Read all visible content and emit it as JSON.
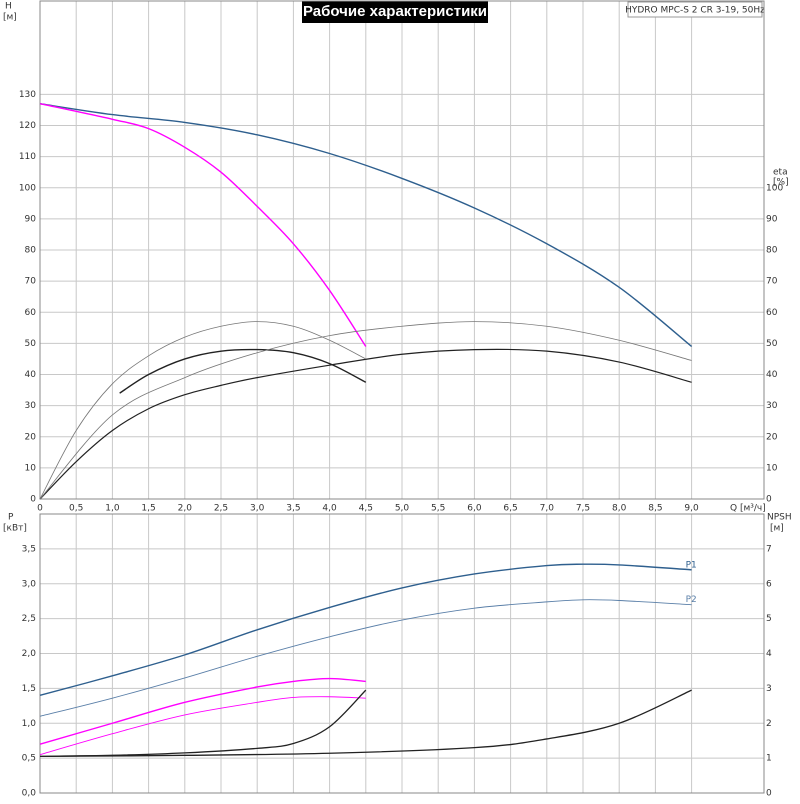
{
  "chart_data": [
    {
      "type": "line",
      "title": "Рабочие характеристики",
      "annotation": "HYDRO MPC-S 2 CR 3-19, 50Hz",
      "ylabel": "H",
      "ylabel_unit": "[м]",
      "y2label": "eta",
      "y2label_unit": "[%]",
      "xlabel": "Q [м³/ч]",
      "xlim": [
        0,
        10
      ],
      "ylim": [
        0,
        160
      ],
      "y2lim": [
        0,
        160
      ],
      "grid": true,
      "xticks": [
        0,
        {
          "value": 0.5,
          "label": "0,5"
        },
        {
          "value": 1,
          "label": "1,0"
        },
        {
          "value": 1.5,
          "label": "1,5"
        },
        {
          "value": 2,
          "label": "2,0"
        },
        {
          "value": 2.5,
          "label": "2,5"
        },
        {
          "value": 3,
          "label": "3,0"
        },
        {
          "value": 3.5,
          "label": "3,5"
        },
        {
          "value": 4,
          "label": "4,0"
        },
        {
          "value": 4.5,
          "label": "4,5"
        },
        {
          "value": 5,
          "label": "5,0"
        },
        {
          "value": 5.5,
          "label": "5,5"
        },
        {
          "value": 6,
          "label": "6,0"
        },
        {
          "value": 6.5,
          "label": "6,5"
        },
        {
          "value": 7,
          "label": "7,0"
        },
        {
          "value": 7.5,
          "label": "7,5"
        },
        {
          "value": 8,
          "label": "8,0"
        },
        {
          "value": 8.5,
          "label": "8,5"
        },
        {
          "value": 9,
          "label": "9,0"
        }
      ],
      "yticks": [
        0,
        10,
        20,
        30,
        40,
        50,
        60,
        70,
        80,
        90,
        100,
        110,
        120,
        130
      ],
      "y2ticks": [
        0,
        10,
        20,
        30,
        40,
        50,
        60,
        70,
        80,
        90,
        100
      ],
      "series": [
        {
          "color": "#2e5f8e",
          "width": 1.4,
          "x": [
            0,
            1,
            2,
            3,
            4,
            5,
            6,
            7,
            8,
            9
          ],
          "values": [
            127,
            123.5,
            121,
            117,
            111,
            103,
            93.5,
            82,
            68,
            49
          ]
        },
        {
          "color": "#ff00ff",
          "width": 1.4,
          "x": [
            0,
            1,
            1.5,
            2,
            2.5,
            3,
            3.5,
            4,
            4.5
          ],
          "values": [
            127,
            122,
            119,
            113,
            105,
            94,
            82,
            67,
            49
          ]
        },
        {
          "color": "#222222",
          "width": 1.4,
          "axis": "y2",
          "x": [
            1.1,
            1.5,
            2,
            2.5,
            3,
            3.5,
            4,
            4.5
          ],
          "values": [
            34,
            40,
            45,
            47.5,
            48,
            47,
            43.5,
            37.5
          ]
        },
        {
          "color": "#222222",
          "width": 1.2,
          "axis": "y2",
          "x": [
            0,
            0.5,
            1,
            1.5,
            2,
            2.5,
            3,
            4,
            5,
            6,
            7,
            8,
            9
          ],
          "values": [
            0,
            12,
            22,
            29,
            33.5,
            36.5,
            39,
            43,
            46.5,
            48,
            47.5,
            44,
            37.5
          ]
        },
        {
          "color": "#777777",
          "width": 0.8,
          "axis": "y2",
          "x": [
            0,
            0.5,
            1,
            1.5,
            2,
            2.5,
            3,
            3.5,
            4,
            4.5
          ],
          "values": [
            0,
            22,
            37,
            46,
            52,
            55.5,
            57,
            55.5,
            51,
            45
          ]
        },
        {
          "color": "#777777",
          "width": 0.8,
          "axis": "y2",
          "x": [
            0,
            1,
            2,
            3,
            4,
            5,
            6,
            7,
            8,
            9
          ],
          "values": [
            0,
            27,
            39,
            47,
            52.5,
            55.5,
            57,
            55.5,
            51,
            44.5
          ]
        }
      ]
    },
    {
      "type": "line",
      "ylabel": "P",
      "ylabel_unit": "[кВт]",
      "y2label": "NPSH",
      "y2label_unit": "[м]",
      "xlim": [
        0,
        10
      ],
      "ylim": [
        0,
        4
      ],
      "y2lim": [
        0,
        8
      ],
      "grid": true,
      "yticks": [
        {
          "value": 0,
          "label": "0,0"
        },
        {
          "value": 0.5,
          "label": "0,5"
        },
        {
          "value": 1,
          "label": "1,0"
        },
        {
          "value": 1.5,
          "label": "1,5"
        },
        {
          "value": 2,
          "label": "2,0"
        },
        {
          "value": 2.5,
          "label": "2,5"
        },
        {
          "value": 3,
          "label": "3,0"
        },
        {
          "value": 3.5,
          "label": "3,5"
        }
      ],
      "y2ticks": [
        0,
        1,
        2,
        3,
        4,
        5,
        6,
        7
      ],
      "series": [
        {
          "name": "P1",
          "color": "#2e5f8e",
          "width": 1.4,
          "x": [
            0,
            1,
            2,
            3,
            4,
            5,
            6,
            7,
            7.5,
            8,
            9
          ],
          "values": [
            1.4,
            1.68,
            1.98,
            2.34,
            2.66,
            2.94,
            3.14,
            3.26,
            3.28,
            3.27,
            3.2
          ]
        },
        {
          "name": "P2",
          "color": "#5a7fa8",
          "width": 0.9,
          "x": [
            0,
            1,
            2,
            3,
            4,
            5,
            6,
            7,
            7.5,
            8,
            9
          ],
          "values": [
            1.1,
            1.36,
            1.65,
            1.96,
            2.24,
            2.48,
            2.65,
            2.74,
            2.77,
            2.76,
            2.7
          ]
        },
        {
          "color": "#ff00ff",
          "width": 1.4,
          "x": [
            0,
            1,
            2,
            3,
            3.5,
            4,
            4.5
          ],
          "values": [
            0.7,
            1.0,
            1.3,
            1.52,
            1.6,
            1.64,
            1.6
          ]
        },
        {
          "color": "#ff00ff",
          "width": 0.9,
          "x": [
            0,
            1,
            2,
            3,
            3.5,
            4,
            4.5
          ],
          "values": [
            0.55,
            0.85,
            1.12,
            1.3,
            1.37,
            1.38,
            1.36
          ]
        },
        {
          "color": "#222222",
          "width": 1.3,
          "axis": "y2",
          "x": [
            0,
            1,
            2,
            3,
            3.5,
            4,
            4.5
          ],
          "values": [
            1.05,
            1.08,
            1.15,
            1.28,
            1.42,
            1.9,
            2.95
          ]
        },
        {
          "color": "#222222",
          "width": 1.3,
          "axis": "y2",
          "x": [
            0,
            2,
            4,
            6,
            7,
            8,
            9
          ],
          "values": [
            1.05,
            1.08,
            1.14,
            1.3,
            1.55,
            2.0,
            2.95
          ]
        }
      ]
    }
  ]
}
